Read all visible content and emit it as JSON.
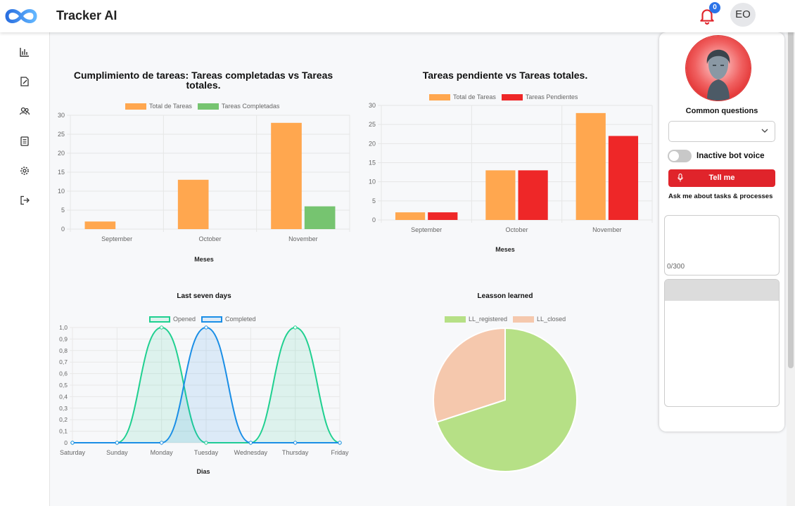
{
  "app": {
    "title": "Tracker AI",
    "logo_icon": "infinity-logo-icon"
  },
  "header": {
    "notification_count": "0",
    "user_initials": "EO",
    "bell_icon": "bell-icon",
    "bell_color": "#e0242b"
  },
  "sidebar": {
    "items": [
      {
        "name": "bar-chart-icon"
      },
      {
        "name": "edit-doc-icon"
      },
      {
        "name": "users-icon"
      },
      {
        "name": "list-icon"
      },
      {
        "name": "gear-icon"
      },
      {
        "name": "logout-icon"
      }
    ]
  },
  "charts": {
    "c1": {
      "title": "Cumplimiento de tareas: Tareas completadas vs Tareas totales.",
      "xlabel": "Meses"
    },
    "c2": {
      "title": "Tareas pendiente vs Tareas totales.",
      "xlabel": "Meses"
    },
    "c3": {
      "title": "Last seven days",
      "xlabel": "Dias"
    },
    "c4": {
      "title": "Leasson learned"
    }
  },
  "chart_data": [
    {
      "type": "bar",
      "title": "Cumplimiento de tareas: Tareas completadas vs Tareas totales.",
      "categories": [
        "September",
        "October",
        "November"
      ],
      "series": [
        {
          "name": "Total de Tareas",
          "values": [
            2,
            13,
            28
          ],
          "color": "#ffa74f"
        },
        {
          "name": "Tareas Completadas",
          "values": [
            0,
            0,
            6
          ],
          "color": "#76c470"
        }
      ],
      "xlabel": "Meses",
      "ylabel": "",
      "ylim": [
        0,
        30
      ],
      "yticks": [
        0,
        5,
        10,
        15,
        20,
        25,
        30
      ],
      "grid": true,
      "legend": "top"
    },
    {
      "type": "bar",
      "title": "Tareas pendiente vs Tareas totales.",
      "categories": [
        "September",
        "October",
        "November"
      ],
      "series": [
        {
          "name": "Total de Tareas",
          "values": [
            2,
            13,
            28
          ],
          "color": "#ffa74f"
        },
        {
          "name": "Tareas Pendientes",
          "values": [
            2,
            13,
            22
          ],
          "color": "#ee2728"
        }
      ],
      "xlabel": "Meses",
      "ylabel": "",
      "ylim": [
        0,
        30
      ],
      "yticks": [
        0,
        5,
        10,
        15,
        20,
        25,
        30
      ],
      "grid": true,
      "legend": "top"
    },
    {
      "type": "area",
      "title": "Last seven days",
      "categories": [
        "Saturday",
        "Sunday",
        "Monday",
        "Tuesday",
        "Wednesday",
        "Thursday",
        "Friday"
      ],
      "series": [
        {
          "name": "Opened",
          "values": [
            0,
            0,
            1,
            0,
            0,
            1,
            0
          ],
          "color": "#1fd090",
          "fill": "rgba(31,208,144,0.12)"
        },
        {
          "name": "Completed",
          "values": [
            0,
            0,
            0,
            1,
            0,
            0,
            0
          ],
          "color": "#1a8ee6",
          "fill": "rgba(26,142,230,0.12)"
        }
      ],
      "xlabel": "Dias",
      "ylabel": "",
      "ylim": [
        0,
        1
      ],
      "yticks": [
        "0",
        "0,1",
        "0,2",
        "0,3",
        "0,4",
        "0,5",
        "0,6",
        "0,7",
        "0,8",
        "0,9",
        "1,0"
      ],
      "grid": true,
      "legend": "top"
    },
    {
      "type": "pie",
      "title": "Leasson learned",
      "labels": [
        "LL_registered",
        "LL_closed"
      ],
      "values": [
        70,
        30
      ],
      "colors": [
        "#b6e086",
        "#f5c8ad"
      ],
      "legend": "top"
    }
  ],
  "assistant": {
    "avatar_icon": "robot-woman-avatar",
    "common_questions_label": "Common questions",
    "select_value": "",
    "chevron_icon": "chevron-down-icon",
    "voice_toggle_label": "Inactive bot voice",
    "voice_toggle_on": false,
    "tell_me_label": "Tell me",
    "mic_icon": "mic-icon",
    "ask_label": "Ask me about tasks & processes",
    "textarea_value": "",
    "counter": "0/300",
    "response_text": ""
  }
}
